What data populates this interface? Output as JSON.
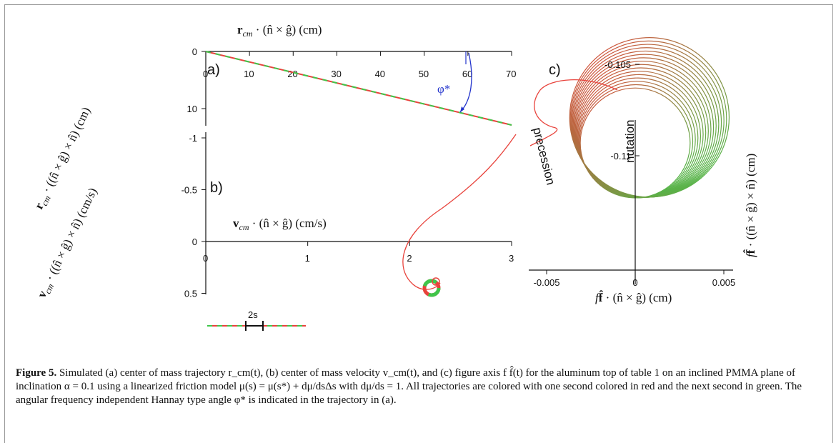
{
  "panel_a": {
    "label": "a)",
    "x_axis_label": "r_cm · (n̂ × ĝ)    (cm)",
    "y_axis_label": "r_cm · ((n̂ × ĝ) × n̂)    (cm)",
    "x_ticks": [
      "0",
      "10",
      "20",
      "30",
      "40",
      "50",
      "60",
      "70"
    ],
    "y_ticks": [
      "0",
      "10"
    ],
    "angle_label": "φ*"
  },
  "panel_b": {
    "label": "b)",
    "x_axis_label": "v_cm · (n̂ × ĝ)    (cm/s)",
    "y_axis_label": "v_cm · ((n̂ × ĝ) × n̂)    (cm/s)",
    "x_ticks": [
      "0",
      "1",
      "2",
      "3"
    ],
    "y_ticks": [
      "-1",
      "-0.5",
      "0",
      "0.5"
    ],
    "scale_label": "2s"
  },
  "panel_c": {
    "label": "c)",
    "x_axis_label": "f f̂ · (n̂ × ĝ)    (cm)",
    "y_axis_label": "f f̂ · ((n̂ × ĝ) × n̂)    (cm)",
    "x_ticks": [
      "-0.005",
      "0",
      "0.005"
    ],
    "y_ticks": [
      "-0.11",
      "-0.105"
    ],
    "nutation_label": "nutation",
    "precession_label": "precession"
  },
  "colors": {
    "red": "#e8433c",
    "green": "#3fc64a"
  },
  "caption": {
    "figure_label": "Figure 5.",
    "text": " Simulated (a) center of mass trajectory r_cm(t), (b) center of mass velocity v_cm(t), and (c) figure axis f f̂(t) for the aluminum top of table 1 on an inclined PMMA plane of inclination α = 0.1 using a linearized friction model μ(s) = μ(s*) + dμ/dsΔs with dμ/ds = 1. All trajectories are colored with one second colored in red and the next second in green. The angular frequency independent Hannay type angle φ* is indicated in the trajectory in (a)."
  },
  "chart_data": [
    {
      "type": "line",
      "title": "",
      "panel": "a",
      "xlabel": "r_cm · (n̂ × ĝ) (cm)",
      "ylabel": "r_cm · ((n̂ × ĝ) × n̂) (cm)",
      "xlim": [
        0,
        70
      ],
      "ylim": [
        0,
        13
      ],
      "y_inverted": true,
      "series": [
        {
          "x": [
            0,
            70
          ],
          "y": [
            0,
            12.6
          ]
        }
      ],
      "annotations": [
        "φ*"
      ]
    },
    {
      "type": "line",
      "title": "",
      "panel": "b",
      "xlabel": "v_cm · (n̂ × ĝ) (cm/s)",
      "ylabel": "v_cm · ((n̂ × ĝ) × n̂) (cm/s)",
      "xlim": [
        0,
        3
      ],
      "ylim": [
        -1,
        0.5
      ],
      "y_inverted": true,
      "series": [
        {
          "x": [
            3.0,
            2.8,
            2.6,
            2.33,
            2.27,
            2.4,
            2.15
          ],
          "y": [
            -1.05,
            -0.7,
            -0.4,
            -0.05,
            0.3,
            0.4,
            0.45
          ]
        }
      ],
      "annotations": [
        "2s"
      ]
    },
    {
      "type": "line",
      "title": "",
      "panel": "c",
      "xlabel": "f f̂ · (n̂ × ĝ) (cm)",
      "ylabel": "f f̂ · ((n̂ × ĝ) × n̂) (cm)",
      "xlim": [
        -0.0052,
        0.0046
      ],
      "ylim": [
        -0.1133,
        -0.1015
      ],
      "rings": {
        "count": 16,
        "center_x": [
          0.0,
          0.0008
        ],
        "center_y": [
          -0.1093,
          -0.1079
        ],
        "radius": [
          0.0031,
          0.0045
        ]
      },
      "annotations": [
        "nutation",
        "precession"
      ]
    }
  ]
}
